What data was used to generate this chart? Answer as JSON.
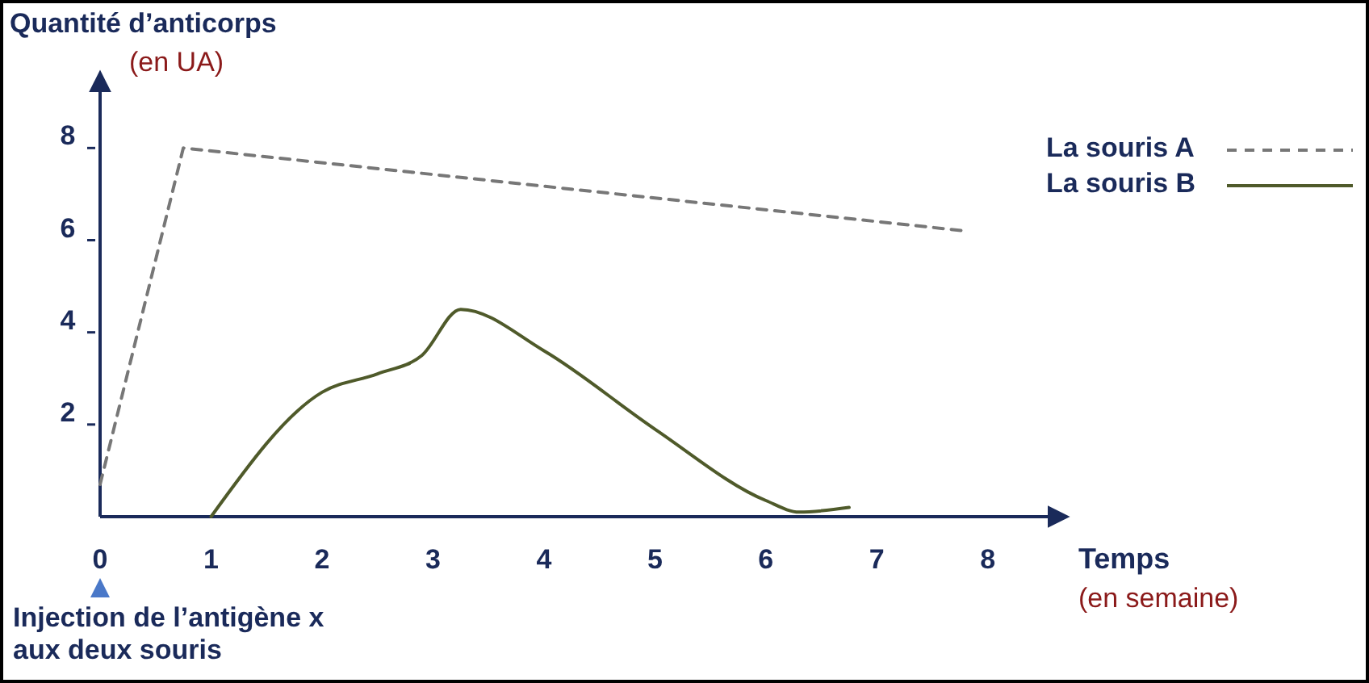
{
  "chart_data": {
    "type": "line",
    "ylabel": "Quantité d’anticorps\n(en UA)",
    "xlabel": "Temps\n(en semaine)",
    "xlim": [
      0,
      8.7
    ],
    "ylim": [
      0,
      9.6
    ],
    "xticks": [
      0,
      1,
      2,
      3,
      4,
      5,
      6,
      7,
      8
    ],
    "yticks": [
      2,
      4,
      6,
      8
    ],
    "legend": "top right",
    "grid": false,
    "annotations": [
      "Injection de l’antigène x\naux deux souris"
    ],
    "series": [
      {
        "name": "La souris A",
        "color": "#777777",
        "line_style": "dashed",
        "x": [
          0,
          0.75,
          7.8
        ],
        "values": [
          0.7,
          8,
          6.2
        ]
      },
      {
        "name": "La souris B",
        "color": "#4f5a2a",
        "line_style": "solid",
        "x": [
          1,
          2,
          2.5,
          2.9,
          3.25,
          4,
          5,
          6,
          6.3,
          6.75
        ],
        "values": [
          0,
          2.7,
          3.1,
          3.5,
          4.5,
          3.6,
          1.9,
          0.35,
          0.1,
          0.2
        ]
      }
    ]
  }
}
